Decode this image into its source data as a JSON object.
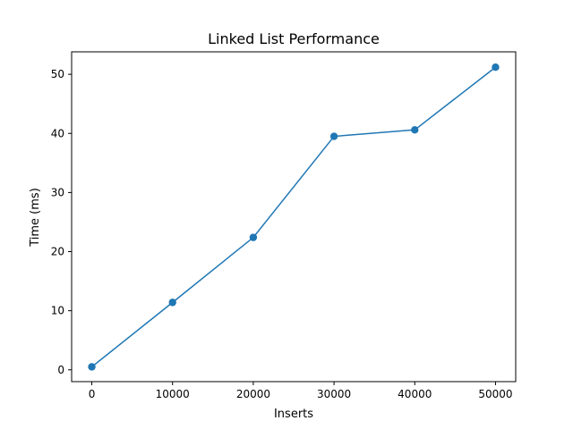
{
  "chart_data": {
    "type": "line",
    "title": "Linked List Performance",
    "xlabel": "Inserts",
    "ylabel": "Time (ms)",
    "x": [
      0,
      10000,
      20000,
      30000,
      40000,
      50000
    ],
    "series": [
      {
        "values": [
          0.5,
          11.4,
          22.4,
          39.5,
          40.6,
          51.2
        ],
        "color": "#1f77b4",
        "marker": "circle"
      }
    ],
    "xlim": [
      -2500,
      52500
    ],
    "ylim": [
      -2.0,
      53.8
    ],
    "xticks": [
      0,
      10000,
      20000,
      30000,
      40000,
      50000
    ],
    "xtick_labels": [
      "0",
      "10000",
      "20000",
      "30000",
      "40000",
      "50000"
    ],
    "yticks": [
      0,
      10,
      20,
      30,
      40,
      50
    ],
    "ytick_labels": [
      "0",
      "10",
      "20",
      "30",
      "40",
      "50"
    ],
    "grid": false,
    "legend": "none"
  }
}
